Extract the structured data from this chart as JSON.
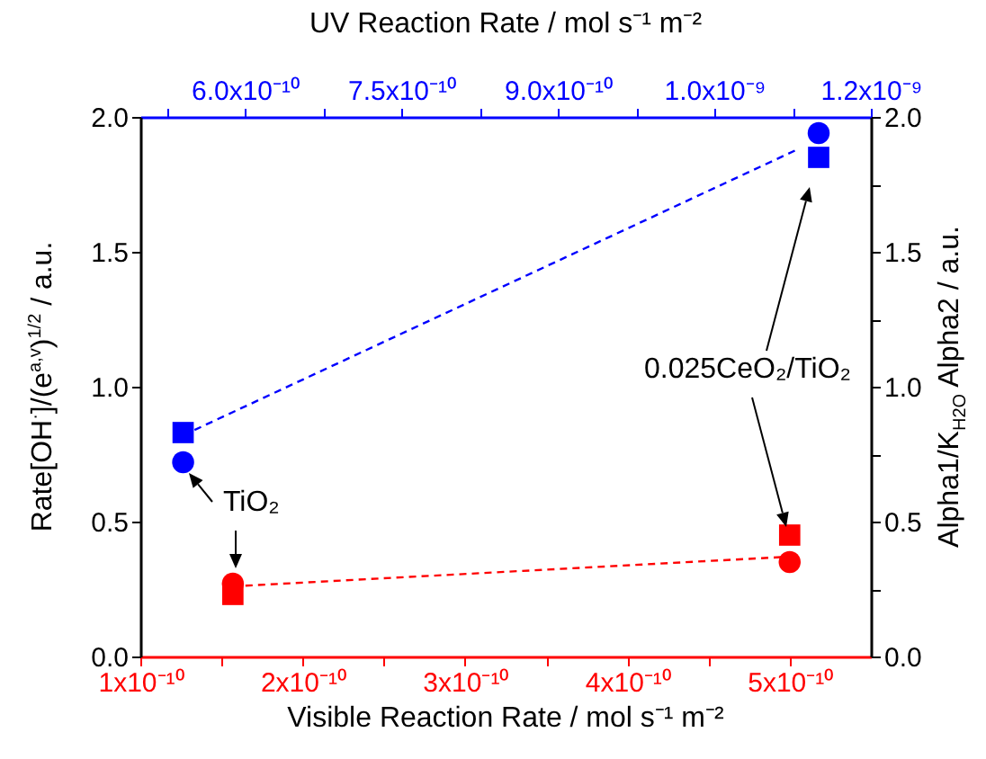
{
  "chart_data": {
    "type": "scatter",
    "xlabel": "Visible Reaction Rate / mol s⁻¹ m⁻²",
    "x2label": "UV Reaction Rate / mol s⁻¹ m⁻²",
    "ylabel": "Rate[OH$^{·}$]/(e$^{a,v}$)$^{1/2}$ / a.u.",
    "y2label": "Alpha1/K$_{H2O}$ Alpha2 / a.u.",
    "xlim": [
      1e-10,
      5.5e-10
    ],
    "xticks": [
      {
        "value": 1e-10,
        "label": "1x10⁻¹⁰"
      },
      {
        "value": 1.5e-10,
        "label": null
      },
      {
        "value": 2e-10,
        "label": "2x10⁻¹⁰"
      },
      {
        "value": 2.5e-10,
        "label": null
      },
      {
        "value": 3e-10,
        "label": "3x10⁻¹⁰"
      },
      {
        "value": 3.5e-10,
        "label": null
      },
      {
        "value": 4e-10,
        "label": "4x10⁻¹⁰"
      },
      {
        "value": 4.5e-10,
        "label": null
      },
      {
        "value": 5e-10,
        "label": "5x10⁻¹⁰"
      }
    ],
    "x2lim": [
      5e-10,
      1.2e-09
    ],
    "x2ticks": [
      {
        "value": 5.25e-10,
        "label": null
      },
      {
        "value": 6e-10,
        "label": "6.0x10⁻¹⁰"
      },
      {
        "value": 6.75e-10,
        "label": null
      },
      {
        "value": 7.5e-10,
        "label": "7.5x10⁻¹⁰"
      },
      {
        "value": 8.25e-10,
        "label": null
      },
      {
        "value": 9e-10,
        "label": "9.0x10⁻¹⁰"
      },
      {
        "value": 9.75e-10,
        "label": null
      },
      {
        "value": 1.05e-09,
        "label": "1.0x10⁻⁹"
      },
      {
        "value": 1.125e-09,
        "label": null
      },
      {
        "value": 1.2e-09,
        "label": "1.2x10⁻⁹"
      }
    ],
    "ylim": [
      0,
      2
    ],
    "yticks": [
      {
        "value": 0,
        "label": "0.0"
      },
      {
        "value": 0.25,
        "label": null
      },
      {
        "value": 0.5,
        "label": "0.5"
      },
      {
        "value": 0.75,
        "label": null
      },
      {
        "value": 1,
        "label": "1.0"
      },
      {
        "value": 1.25,
        "label": null
      },
      {
        "value": 1.5,
        "label": "1.5"
      },
      {
        "value": 1.75,
        "label": null
      },
      {
        "value": 2,
        "label": "2.0"
      }
    ],
    "y2lim": [
      0,
      2
    ],
    "y2ticks": [
      {
        "value": 0,
        "label": "0.0"
      },
      {
        "value": 0.25,
        "label": null
      },
      {
        "value": 0.5,
        "label": "0.5"
      },
      {
        "value": 0.75,
        "label": null
      },
      {
        "value": 1,
        "label": "1.0"
      },
      {
        "value": 1.25,
        "label": null
      },
      {
        "value": 1.5,
        "label": "1.5"
      },
      {
        "value": 1.75,
        "label": null
      },
      {
        "value": 2,
        "label": "2.0"
      }
    ],
    "annotations": [
      "TiO₂",
      "0.025CeO₂/TiO₂"
    ],
    "series": [
      {
        "type": "line",
        "color": "#ff0000",
        "marker": "none",
        "line_style": "dashed",
        "x": [
          1.57e-10,
          5e-10
        ],
        "values": [
          0.26,
          0.37
        ]
      },
      {
        "color": "#ff0000",
        "marker": "square",
        "x": [
          1.57e-10,
          5e-10
        ],
        "values": [
          0.23,
          0.45
        ]
      },
      {
        "color": "#ff0000",
        "marker": "circle",
        "x": [
          1.57e-10,
          5e-10
        ],
        "values": [
          0.27,
          0.35
        ]
      },
      {
        "type": "line",
        "axis": "x2",
        "color": "#0000ff",
        "marker": "none",
        "line_style": "dashed",
        "x": [
          5.41e-10,
          1.13e-09
        ],
        "values": [
          0.82,
          1.88
        ]
      },
      {
        "axis": "x2",
        "color": "#0000ff",
        "marker": "square",
        "x": [
          5.41e-10,
          1.15e-09
        ],
        "values": [
          0.83,
          1.85
        ]
      },
      {
        "axis": "x2",
        "color": "#0000ff",
        "marker": "circle",
        "x": [
          5.41e-10,
          1.15e-09
        ],
        "values": [
          0.72,
          1.94
        ]
      }
    ]
  }
}
